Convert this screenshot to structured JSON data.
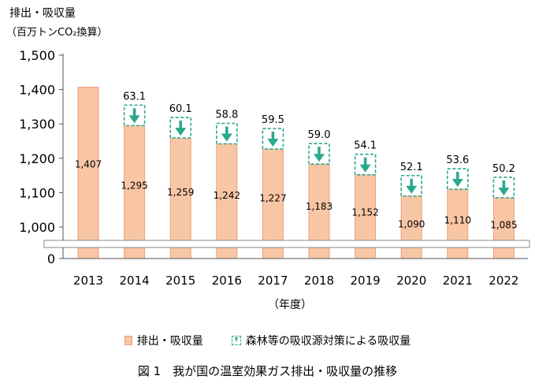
{
  "chart_data": {
    "type": "bar",
    "ylabel_line1": "排出・吸収量",
    "ylabel_line2": "（百万トンCO₂換算）",
    "xlabel": "（年度）",
    "caption": "図 1　我が国の温室効果ガス排出・吸収量の推移",
    "categories": [
      "2013",
      "2014",
      "2015",
      "2016",
      "2017",
      "2018",
      "2019",
      "2020",
      "2021",
      "2022"
    ],
    "series": [
      {
        "name": "排出・吸収量",
        "values": [
          1407,
          1295,
          1259,
          1242,
          1227,
          1183,
          1152,
          1090,
          1110,
          1085
        ]
      },
      {
        "name": "森林等の吸収源対策による吸収量",
        "values": [
          null,
          63.1,
          60.1,
          58.8,
          59.5,
          59.0,
          54.1,
          52.1,
          53.6,
          50.2
        ]
      }
    ],
    "value_labels": [
      "1,407",
      "1,295",
      "1,259",
      "1,242",
      "1,227",
      "1,183",
      "1,152",
      "1,090",
      "1,110",
      "1,085"
    ],
    "sink_labels": [
      "",
      "63.1",
      "60.1",
      "58.8",
      "59.5",
      "59.0",
      "54.1",
      "52.1",
      "53.6",
      "50.2"
    ],
    "yticks": [
      {
        "value": 1500,
        "label": "1,500"
      },
      {
        "value": 1400,
        "label": "1,400"
      },
      {
        "value": 1300,
        "label": "1,300"
      },
      {
        "value": 1200,
        "label": "1,200"
      },
      {
        "value": 1100,
        "label": "1,100"
      },
      {
        "value": 1000,
        "label": "1,000"
      },
      {
        "value": 0,
        "label": "0"
      }
    ],
    "ylim": [
      0,
      1500
    ],
    "axis_break": true,
    "grid": false,
    "legend_position": "bottom",
    "colors": {
      "bar_fill": "#f8c6a4",
      "bar_stroke": "#e8a27f",
      "sink": "#2aa88c"
    }
  }
}
